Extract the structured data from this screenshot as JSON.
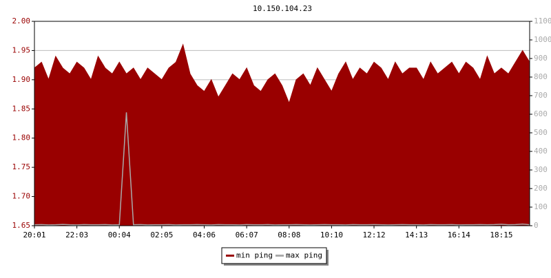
{
  "chart_data": {
    "type": "area",
    "title": "10.150.104.23",
    "categories": [
      "20:01",
      null,
      null,
      null,
      null,
      null,
      "22:03",
      null,
      null,
      null,
      null,
      null,
      "00:04",
      null,
      null,
      null,
      null,
      null,
      "02:05",
      null,
      null,
      null,
      null,
      null,
      "04:06",
      null,
      null,
      null,
      null,
      null,
      "06:07",
      null,
      null,
      null,
      null,
      null,
      "08:08",
      null,
      null,
      null,
      null,
      null,
      "10:10",
      null,
      null,
      null,
      null,
      null,
      "12:12",
      null,
      null,
      null,
      null,
      null,
      "14:13",
      null,
      null,
      null,
      null,
      null,
      "16:14",
      null,
      null,
      null,
      null,
      null,
      "18:15",
      null,
      null,
      null,
      null
    ],
    "series": [
      {
        "name": "min ping",
        "color": "#990000",
        "values": [
          1.92,
          1.93,
          1.9,
          1.94,
          1.92,
          1.91,
          1.93,
          1.92,
          1.9,
          1.94,
          1.92,
          1.91,
          1.93,
          1.91,
          1.92,
          1.9,
          1.92,
          1.91,
          1.9,
          1.92,
          1.93,
          1.96,
          1.91,
          1.89,
          1.88,
          1.9,
          1.87,
          1.89,
          1.91,
          1.9,
          1.92,
          1.89,
          1.88,
          1.9,
          1.91,
          1.89,
          1.86,
          1.9,
          1.91,
          1.89,
          1.92,
          1.9,
          1.88,
          1.91,
          1.93,
          1.9,
          1.92,
          1.91,
          1.93,
          1.92,
          1.9,
          1.93,
          1.91,
          1.92,
          1.92,
          1.9,
          1.93,
          1.91,
          1.92,
          1.93,
          1.91,
          1.93,
          1.92,
          1.9,
          1.94,
          1.91,
          1.92,
          1.91,
          1.93,
          1.95,
          1.93
        ]
      },
      {
        "name": "max ping",
        "color": "#aaaaaa",
        "axis": "y2",
        "values": [
          5,
          6,
          4,
          5,
          7,
          5,
          4,
          6,
          5,
          5,
          6,
          4,
          5,
          610,
          5,
          6,
          4,
          5,
          5,
          6,
          4,
          5,
          5,
          6,
          5,
          4,
          6,
          5,
          5,
          4,
          6,
          5,
          5,
          6,
          4,
          5,
          5,
          6,
          5,
          4,
          5,
          6,
          5,
          5,
          4,
          6,
          5,
          5,
          6,
          5,
          4,
          5,
          6,
          5,
          5,
          4,
          6,
          5,
          5,
          6,
          4,
          5,
          5,
          6,
          5,
          6,
          8,
          5,
          6,
          9,
          5
        ]
      }
    ],
    "ylim": [
      1.65,
      2.0
    ],
    "yticks": [
      1.65,
      {
        "value": 1.7,
        "label": "1.70"
      },
      1.75,
      {
        "value": 1.8,
        "label": "1.80"
      },
      1.85,
      {
        "value": 1.9,
        "label": "1.90"
      },
      1.95,
      {
        "value": 2.0,
        "label": "2.00"
      }
    ],
    "y2lim": [
      0,
      1100
    ],
    "y2ticks": [
      0,
      100,
      200,
      300,
      400,
      500,
      600,
      700,
      800,
      900,
      1000,
      1100
    ],
    "grid": true,
    "legend": "bottom"
  }
}
